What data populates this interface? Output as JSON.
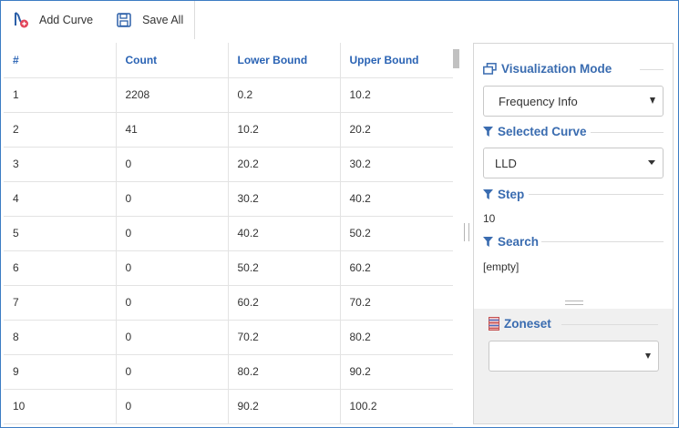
{
  "toolbar": {
    "add_curve": {
      "label": "Add Curve",
      "icon": "add-curve-icon"
    },
    "save_all": {
      "label": "Save All",
      "icon": "save-icon"
    }
  },
  "table": {
    "columns": [
      "#",
      "Count",
      "Lower Bound",
      "Upper Bound"
    ],
    "rows": [
      [
        "1",
        "2208",
        "0.2",
        "10.2"
      ],
      [
        "2",
        "41",
        "10.2",
        "20.2"
      ],
      [
        "3",
        "0",
        "20.2",
        "30.2"
      ],
      [
        "4",
        "0",
        "30.2",
        "40.2"
      ],
      [
        "5",
        "0",
        "40.2",
        "50.2"
      ],
      [
        "6",
        "0",
        "50.2",
        "60.2"
      ],
      [
        "7",
        "0",
        "60.2",
        "70.2"
      ],
      [
        "8",
        "0",
        "70.2",
        "80.2"
      ],
      [
        "9",
        "0",
        "80.2",
        "90.2"
      ],
      [
        "10",
        "0",
        "90.2",
        "100.2"
      ]
    ]
  },
  "panel": {
    "visualization_mode": {
      "title": "Visualization Mode",
      "value": "Frequency Info",
      "icon": "window-restore-icon"
    },
    "selected_curve": {
      "title": "Selected Curve",
      "value": "LLD",
      "icon": "filter-icon"
    },
    "step": {
      "title": "Step",
      "value": "10",
      "icon": "filter-icon"
    },
    "search": {
      "title": "Search",
      "value": "[empty]",
      "icon": "filter-icon"
    },
    "zoneset": {
      "title": "Zoneset",
      "value": "",
      "icon": "zoneset-icon"
    }
  },
  "colors": {
    "accent": "#3a6cb0",
    "header_text": "#2a63b4",
    "frame": "#3c7cc4",
    "zone_bg": "#f0f0f0"
  }
}
